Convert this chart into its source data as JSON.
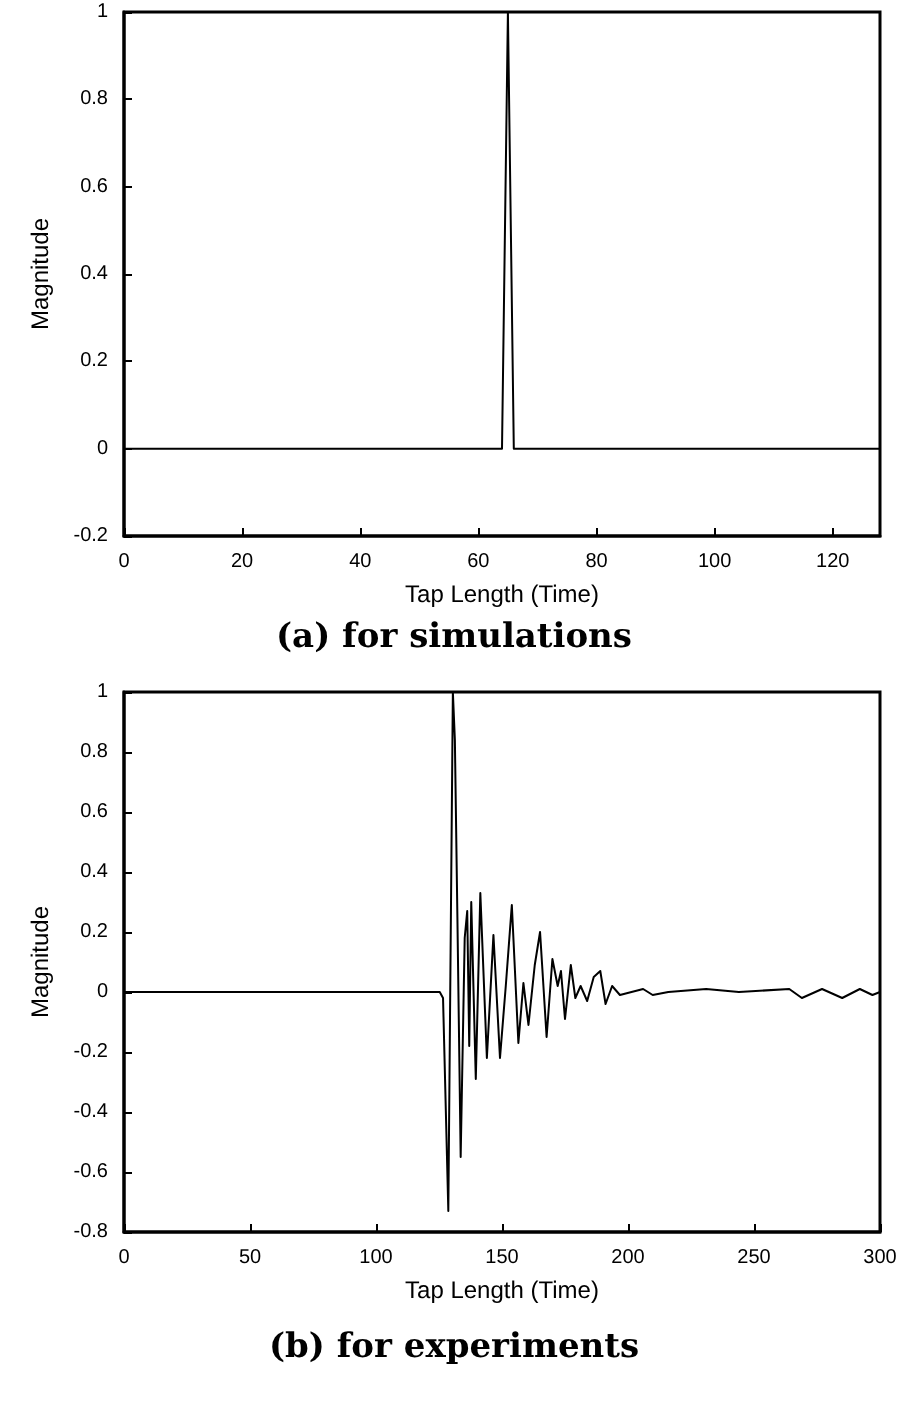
{
  "chart_data": [
    {
      "type": "line",
      "title": "(a) for simulations",
      "xlabel": "Tap Length (Time)",
      "ylabel": "Magnitude",
      "xlim": [
        0,
        128
      ],
      "xticks": [
        0,
        20,
        40,
        60,
        80,
        100,
        120
      ],
      "ylim": [
        -0.2,
        1
      ],
      "yticks": [
        -0.2,
        0,
        0.2,
        0.4,
        0.6,
        0.8,
        1
      ],
      "marker": "none",
      "series": [
        {
          "color": "#000000",
          "x": [
            0,
            64,
            65,
            66,
            128
          ],
          "values": [
            0,
            0,
            1,
            0,
            0
          ]
        }
      ]
    },
    {
      "type": "line",
      "title": "(b) for experiments",
      "xlabel": "Tap Length (Time)",
      "ylabel": "Magnitude",
      "xlim": [
        0,
        300
      ],
      "xticks": [
        0,
        50,
        100,
        150,
        200,
        250,
        300
      ],
      "ylim": [
        -0.8,
        1
      ],
      "yticks": [
        -0.8,
        -0.6,
        -0.4,
        -0.2,
        0,
        0.2,
        0.4,
        0.6,
        0.8,
        1
      ],
      "marker": "none",
      "series": [
        {
          "color": "#000000",
          "x": [
            0,
            50,
            100,
            125.3,
            126.6,
            128.7,
            130.5,
            131.3,
            132.3,
            133.6,
            135.2,
            136.2,
            137,
            137.8,
            139.6,
            141.4,
            144,
            146.6,
            149.2,
            151.5,
            153.9,
            156.5,
            158.5,
            160.5,
            163,
            165.1,
            167.7,
            170,
            172.1,
            173.4,
            175,
            177.3,
            179.1,
            181.2,
            183.8,
            186.4,
            189,
            191.1,
            193.7,
            196.8,
            206,
            209.8,
            216,
            231,
            244,
            264,
            269,
            277,
            285,
            292,
            297,
            300
          ],
          "values": [
            0,
            0,
            0,
            0,
            -0.02,
            -0.73,
            1,
            0.84,
            0.25,
            -0.55,
            0.18,
            0.27,
            -0.18,
            0.3,
            -0.29,
            0.33,
            -0.22,
            0.19,
            -0.22,
            0.02,
            0.29,
            -0.17,
            0.03,
            -0.11,
            0.09,
            0.2,
            -0.15,
            0.11,
            0.02,
            0.07,
            -0.09,
            0.09,
            -0.02,
            0.02,
            -0.03,
            0.05,
            0.07,
            -0.04,
            0.02,
            -0.01,
            0.01,
            -0.01,
            0,
            0.01,
            0,
            0.01,
            -0.02,
            0.01,
            -0.02,
            0.01,
            -0.01,
            0
          ]
        }
      ]
    }
  ]
}
